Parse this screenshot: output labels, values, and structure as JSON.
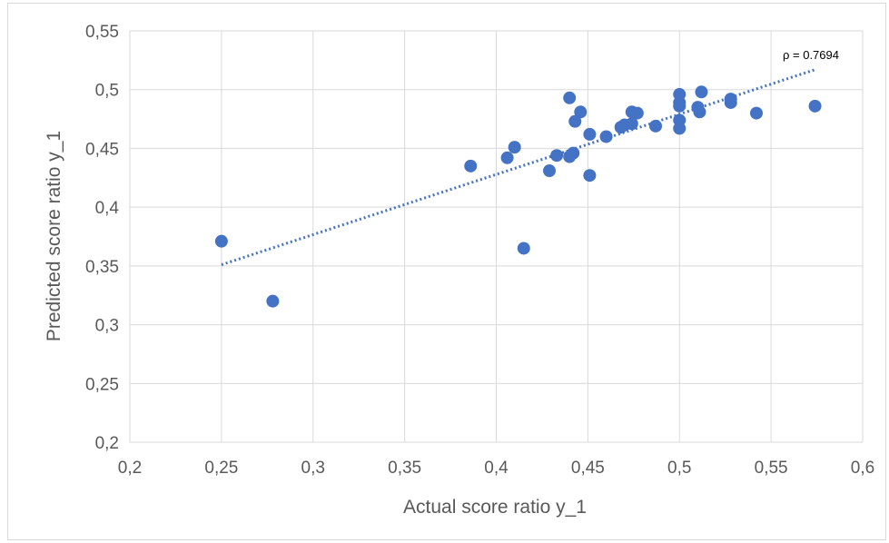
{
  "chart_data": {
    "type": "scatter",
    "title": "",
    "xlabel": "Actual score ratio y_1",
    "ylabel": "Predicted score ratio y_1",
    "xlim": [
      0.2,
      0.6
    ],
    "ylim": [
      0.2,
      0.55
    ],
    "x_ticks": [
      "0,2",
      "0,25",
      "0,3",
      "0,35",
      "0,4",
      "0,45",
      "0,5",
      "0,55",
      "0,6"
    ],
    "y_ticks": [
      "0,2",
      "0,25",
      "0,3",
      "0,35",
      "0,4",
      "0,45",
      "0,5",
      "0,55"
    ],
    "grid": true,
    "marker_color": "#4472C4",
    "trendline_color": "#4472C4",
    "annotation": "ρ = 0.7694",
    "trendline": {
      "x": [
        0.25,
        0.574
      ],
      "y": [
        0.351,
        0.517
      ]
    },
    "series": [
      {
        "x": [
          0.25,
          0.278,
          0.386,
          0.406,
          0.41,
          0.415,
          0.429,
          0.433,
          0.44,
          0.44,
          0.442,
          0.443,
          0.446,
          0.451,
          0.451,
          0.46,
          0.468,
          0.47,
          0.474,
          0.474,
          0.477,
          0.487,
          0.5,
          0.5,
          0.5,
          0.5,
          0.5,
          0.51,
          0.511,
          0.512,
          0.528,
          0.528,
          0.542,
          0.574
        ],
        "y": [
          0.371,
          0.32,
          0.435,
          0.442,
          0.451,
          0.365,
          0.431,
          0.444,
          0.443,
          0.493,
          0.446,
          0.473,
          0.481,
          0.462,
          0.427,
          0.46,
          0.468,
          0.47,
          0.481,
          0.471,
          0.48,
          0.469,
          0.496,
          0.489,
          0.486,
          0.474,
          0.467,
          0.485,
          0.481,
          0.498,
          0.492,
          0.489,
          0.48,
          0.486
        ]
      }
    ]
  }
}
